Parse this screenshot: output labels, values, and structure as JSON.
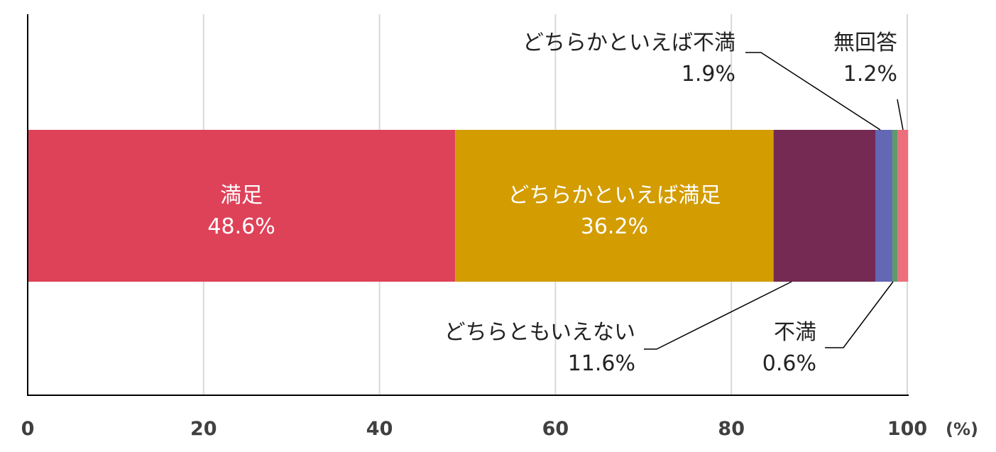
{
  "chart_data": {
    "type": "bar",
    "orientation": "horizontal",
    "stacked": true,
    "unit_label": "(%)",
    "xlim": [
      0,
      100
    ],
    "x_ticks": [
      "0",
      "20",
      "40",
      "60",
      "80",
      "100"
    ],
    "grid": true,
    "series": [
      {
        "name": "満足",
        "value": 48.6,
        "value_label": "48.6%",
        "color": "#de4259",
        "label_position": "inside"
      },
      {
        "name": "どちらかといえば満足",
        "value": 36.2,
        "value_label": "36.2%",
        "color": "#d39c00",
        "label_position": "inside"
      },
      {
        "name": "どちらともいえない",
        "value": 11.6,
        "value_label": "11.6%",
        "color": "#742a52",
        "label_position": "below-callout"
      },
      {
        "name": "どちらかといえば不満",
        "value": 1.9,
        "value_label": "1.9%",
        "color": "#6268b4",
        "label_position": "above-callout"
      },
      {
        "name": "不満",
        "value": 0.6,
        "value_label": "0.6%",
        "color": "#5e9a6e",
        "label_position": "below-callout"
      },
      {
        "name": "無回答",
        "value": 1.2,
        "value_label": "1.2%",
        "color": "#ed6f7c",
        "label_position": "above-callout"
      }
    ]
  }
}
